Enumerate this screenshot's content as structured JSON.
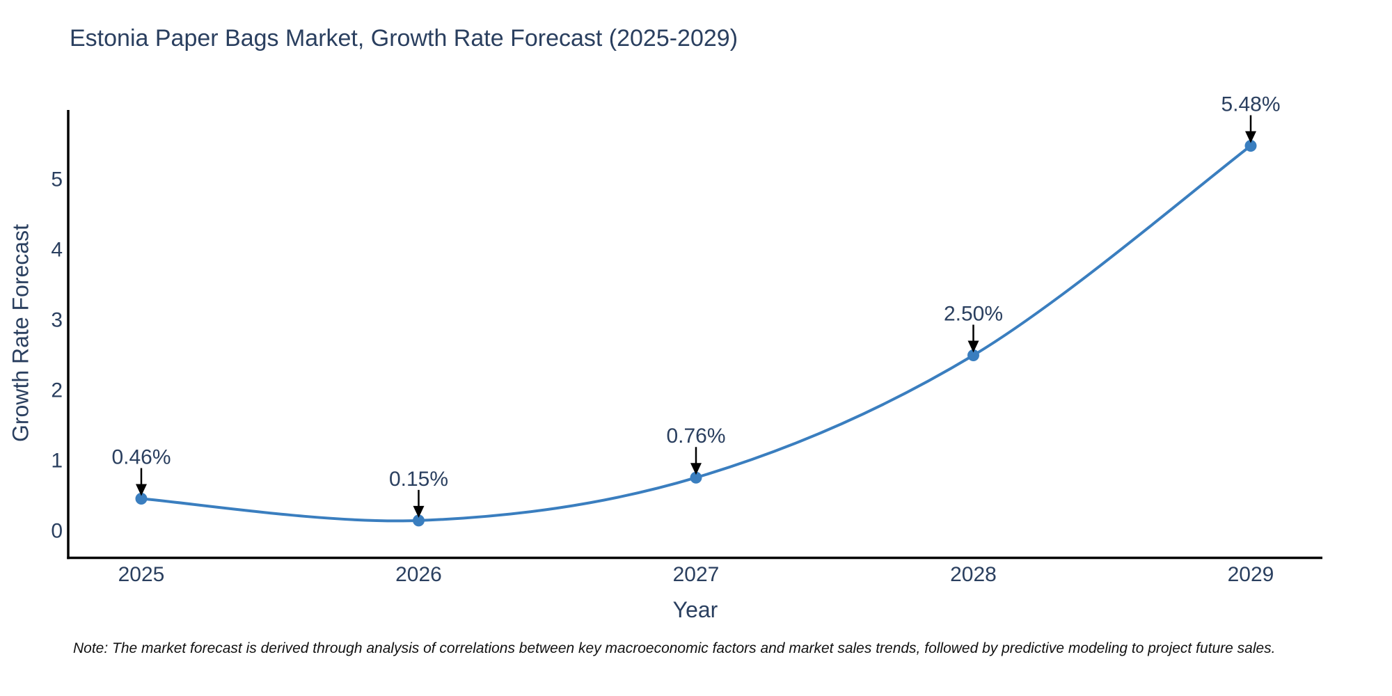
{
  "chart_data": {
    "type": "line",
    "title": "Estonia Paper Bags Market, Growth Rate Forecast (2025-2029)",
    "xlabel": "Year",
    "ylabel": "Growth Rate Forecast",
    "x": [
      2025,
      2026,
      2027,
      2028,
      2029
    ],
    "series": [
      {
        "name": "Growth Rate Forecast",
        "values": [
          0.46,
          0.15,
          0.76,
          2.5,
          5.48
        ]
      }
    ],
    "point_labels": [
      "0.46%",
      "0.15%",
      "0.76%",
      "2.50%",
      "5.48%"
    ],
    "xticks": [
      "2025",
      "2026",
      "2027",
      "2028",
      "2029"
    ],
    "yticks": [
      0,
      1,
      2,
      3,
      4,
      5
    ],
    "xlim": [
      2024.74,
      2029.26
    ],
    "ylim": [
      -0.4,
      6.0
    ],
    "line_shape": "spline",
    "grid": false,
    "legend_position": "none",
    "colors": {
      "line": "#3a7ebf",
      "marker": "#3a7ebf",
      "axis": "#000000",
      "arrow": "#000000",
      "text": "#2a3f5f",
      "background": "#ffffff"
    },
    "note": "Note: The market forecast is derived through analysis of correlations between key macroeconomic factors and market sales trends, followed by predictive modeling to project future sales."
  }
}
